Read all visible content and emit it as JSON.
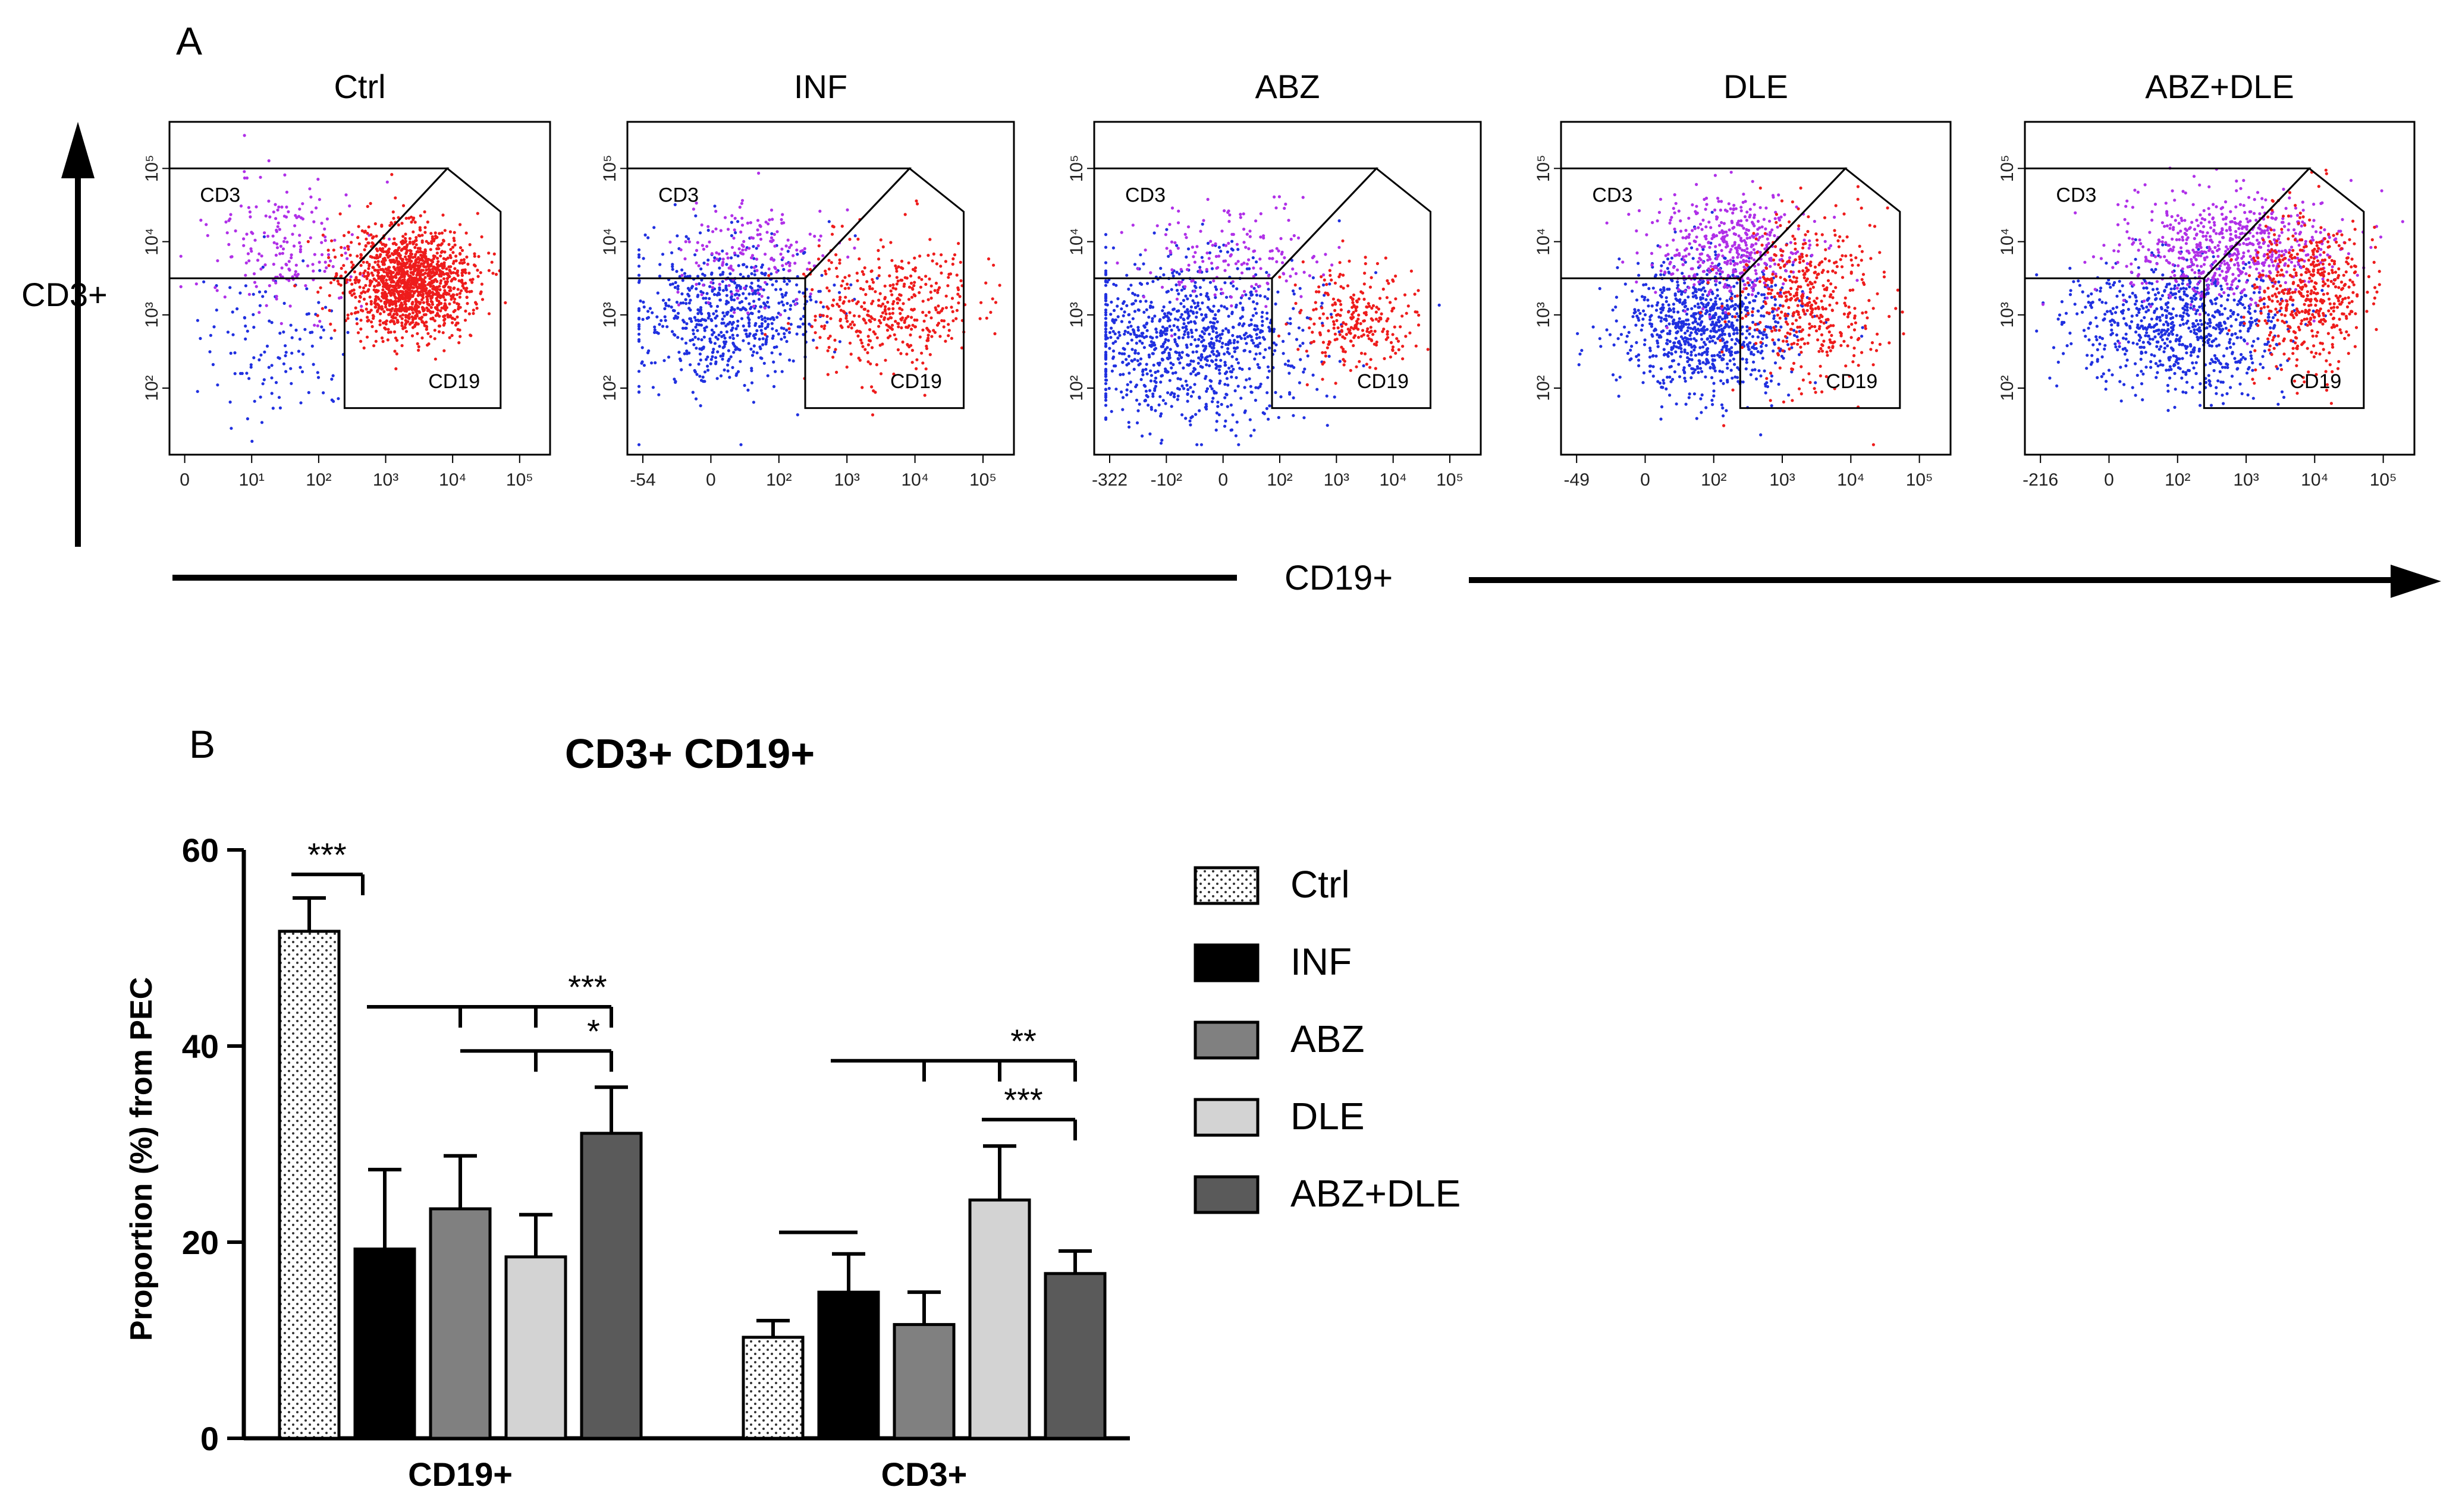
{
  "panel_a": {
    "label": "A",
    "y_axis_label": "CD3+",
    "x_axis_label": "CD19+",
    "plots": [
      {
        "title": "Ctrl",
        "gate_cd3": "CD3",
        "gate_cd19": "CD19",
        "x_ticks": [
          "0",
          "10¹",
          "10²",
          "10³",
          "10⁴",
          "10⁵"
        ],
        "y_ticks": [
          "10²",
          "10³",
          "10⁴",
          "10⁵"
        ]
      },
      {
        "title": "INF",
        "gate_cd3": "CD3",
        "gate_cd19": "CD19",
        "x_ticks": [
          "-54",
          "0",
          "10²",
          "10³",
          "10⁴",
          "10⁵"
        ],
        "y_ticks": [
          "10²",
          "10³",
          "10⁴",
          "10⁵"
        ]
      },
      {
        "title": "ABZ",
        "gate_cd3": "CD3",
        "gate_cd19": "CD19",
        "x_ticks": [
          "-322",
          "-10²",
          "0",
          "10²",
          "10³",
          "10⁴",
          "10⁵"
        ],
        "y_ticks": [
          "10²",
          "10³",
          "10⁴",
          "10⁵"
        ]
      },
      {
        "title": "DLE",
        "gate_cd3": "CD3",
        "gate_cd19": "CD19",
        "x_ticks": [
          "-49",
          "0",
          "10²",
          "10³",
          "10⁴",
          "10⁵"
        ],
        "y_ticks": [
          "10²",
          "10³",
          "10⁴",
          "10⁵"
        ]
      },
      {
        "title": "ABZ+DLE",
        "gate_cd3": "CD3",
        "gate_cd19": "CD19",
        "x_ticks": [
          "-216",
          "0",
          "10²",
          "10³",
          "10⁴",
          "10⁵"
        ],
        "y_ticks": [
          "10²",
          "10³",
          "10⁴",
          "10⁵"
        ]
      }
    ]
  },
  "panel_b": {
    "label": "B"
  },
  "chart_data": {
    "type": "bar",
    "title": "CD3+ CD19+",
    "ylabel": "Proportion (%) from PEC",
    "xlabel": "",
    "ylim": [
      0,
      60
    ],
    "yticks": [
      "0",
      "20",
      "40",
      "60"
    ],
    "categories": [
      "CD19+",
      "CD3+"
    ],
    "series": [
      {
        "name": "Ctrl",
        "values": [
          51.7,
          10.3
        ],
        "errors": [
          3.4,
          1.7
        ],
        "color": "#ffffff",
        "pattern": "dots"
      },
      {
        "name": "INF",
        "values": [
          19.3,
          14.9
        ],
        "errors": [
          8.1,
          3.9
        ],
        "color": "#000000",
        "pattern": "solid"
      },
      {
        "name": "ABZ",
        "values": [
          23.4,
          11.6
        ],
        "errors": [
          5.4,
          3.3
        ],
        "color": "#808080",
        "pattern": "solid"
      },
      {
        "name": "DLE",
        "values": [
          18.5,
          24.3
        ],
        "errors": [
          4.3,
          5.5
        ],
        "color": "#d3d3d3",
        "pattern": "solid"
      },
      {
        "name": "ABZ+DLE",
        "values": [
          31.1,
          16.8
        ],
        "errors": [
          4.7,
          2.3
        ],
        "color": "#5a5a5a",
        "pattern": "solid"
      }
    ],
    "significance": [
      "***",
      "***",
      "*",
      "**",
      "***"
    ],
    "legend_position": "right"
  }
}
